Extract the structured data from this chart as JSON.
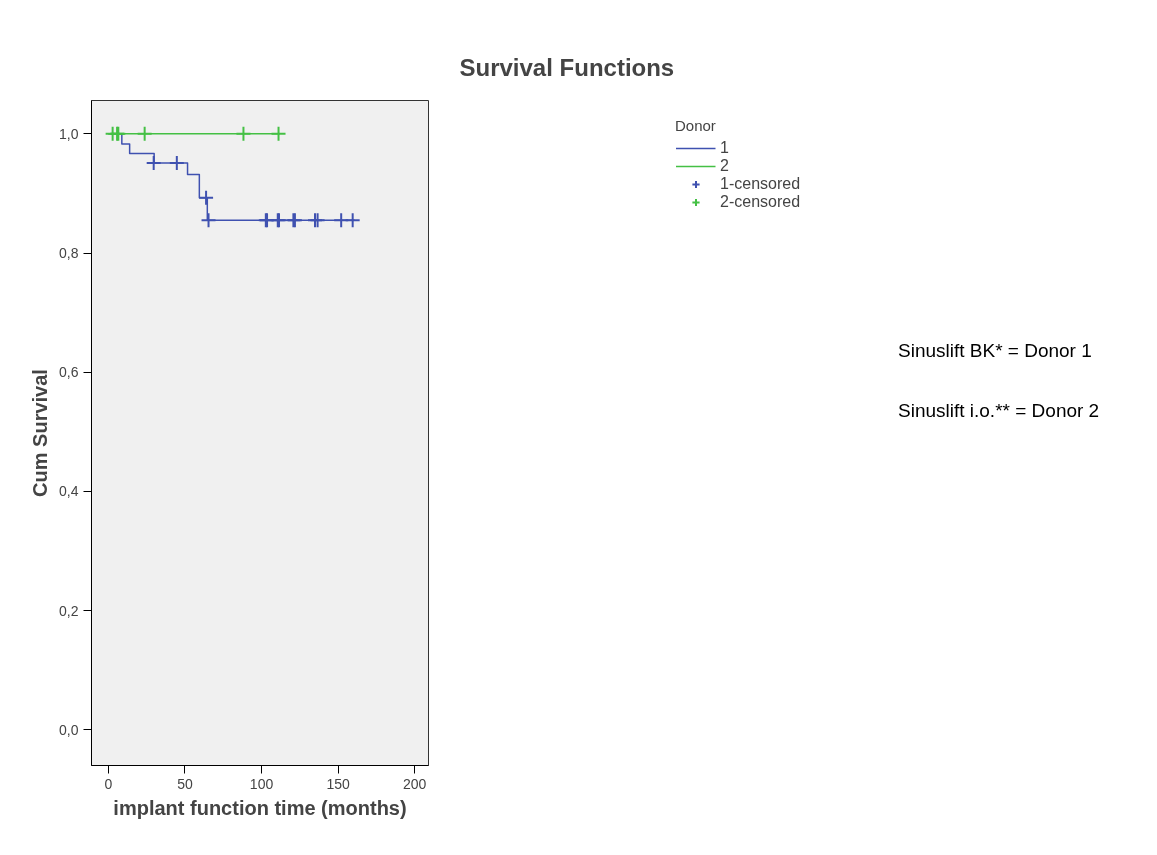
{
  "chart_data": {
    "type": "step",
    "title": "Survival Functions",
    "xlabel": "implant function time (months)",
    "ylabel": "Cum Survival",
    "legend_title": "Donor",
    "series": [
      {
        "name": "1",
        "color": "#3f51b0",
        "x": [
          0,
          8.8,
          13.9,
          29.9,
          51.7,
          59.4,
          64.6,
          160.8
        ],
        "values": [
          1.0,
          0.983,
          0.967,
          0.951,
          0.932,
          0.893,
          0.855,
          0.855
        ]
      },
      {
        "name": "2",
        "color": "#44c044",
        "x": [
          0,
          112
        ],
        "values": [
          1.0,
          1.0
        ]
      },
      {
        "name": "1-censored",
        "type": "scatter",
        "marker": "cross",
        "color": "#3f51b0",
        "x": [
          29.6,
          44.7,
          63.8,
          65.4,
          102.8,
          103.6,
          110.6,
          111.4,
          120.8,
          121.8,
          134.9,
          136.6,
          152.0,
          159.5
        ],
        "values": [
          0.951,
          0.951,
          0.893,
          0.855,
          0.855,
          0.855,
          0.855,
          0.855,
          0.855,
          0.855,
          0.855,
          0.855,
          0.855,
          0.855
        ]
      },
      {
        "name": "2-censored",
        "type": "scatter",
        "marker": "cross",
        "color": "#44c044",
        "x": [
          2.8,
          5.7,
          6.5,
          23.7,
          88.2,
          111.1
        ],
        "values": [
          1.0,
          1.0,
          1.0,
          1.0,
          1.0,
          1.0
        ]
      }
    ],
    "xlim": [
      -11,
      209
    ],
    "ylim": [
      -0.06,
      1.056
    ],
    "xticks": [
      0,
      50,
      100,
      150,
      200
    ],
    "yticks": [
      {
        "value": 0,
        "label": "0,0"
      },
      {
        "value": 0.2,
        "label": "0,2"
      },
      {
        "value": 0.4,
        "label": "0,4"
      },
      {
        "value": 0.6,
        "label": "0,6"
      },
      {
        "value": 0.8,
        "label": "0,8"
      },
      {
        "value": 1.0,
        "label": "1,0"
      }
    ],
    "grid": false,
    "legend": "right",
    "annotations": [
      "Sinuslift BK* = Donor 1",
      "Sinuslift i.o.** = Donor 2"
    ]
  }
}
